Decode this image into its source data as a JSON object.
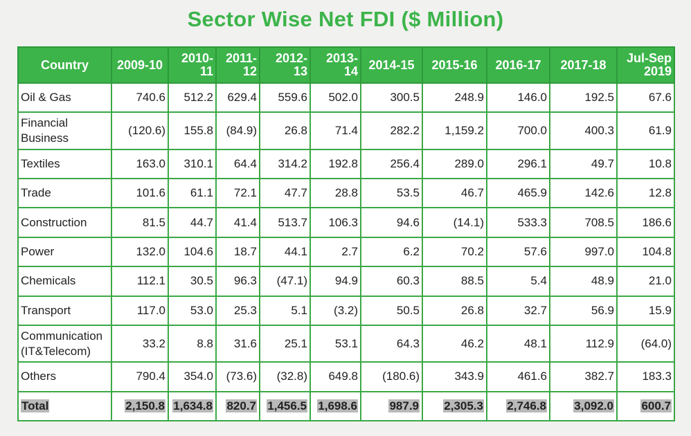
{
  "title": "Sector Wise Net FDI ($ Million)",
  "colors": {
    "title": "#3cb44a",
    "header_bg": "#3cb44a",
    "grid": "#3aa845",
    "total_highlight": "#b9b9b9"
  },
  "chart_data": {
    "type": "table",
    "title": "Sector Wise Net FDI ($ Million)",
    "columns": [
      "Country",
      "2009-10",
      "2010-11",
      "2011-12",
      "2012-13",
      "2013-14",
      "2014-15",
      "2015-16",
      "2016-17",
      "2017-18",
      "Jul-Sep 2019"
    ],
    "header_lines": [
      [
        "Country"
      ],
      [
        "2009-10"
      ],
      [
        "2010-",
        "11"
      ],
      [
        "2011-",
        "12"
      ],
      [
        "2012-",
        "13"
      ],
      [
        "2013-",
        "14"
      ],
      [
        "2014-15"
      ],
      [
        "2015-16"
      ],
      [
        "2016-17"
      ],
      [
        "2017-18"
      ],
      [
        "Jul-Sep",
        "2019"
      ]
    ],
    "rows": [
      {
        "label_lines": [
          "Oil & Gas"
        ],
        "values": [
          "740.6",
          "512.2",
          "629.4",
          "559.6",
          "502.0",
          "300.5",
          "248.9",
          "146.0",
          "192.5",
          "67.6"
        ]
      },
      {
        "label_lines": [
          "Financial",
          "Business"
        ],
        "values": [
          "(120.6)",
          "155.8",
          "(84.9)",
          "26.8",
          "71.4",
          "282.2",
          "1,159.2",
          "700.0",
          "400.3",
          "61.9"
        ]
      },
      {
        "label_lines": [
          "Textiles"
        ],
        "values": [
          "163.0",
          "310.1",
          "64.4",
          "314.2",
          "192.8",
          "256.4",
          "289.0",
          "296.1",
          "49.7",
          "10.8"
        ]
      },
      {
        "label_lines": [
          "Trade"
        ],
        "values": [
          "101.6",
          "61.1",
          "72.1",
          "47.7",
          "28.8",
          "53.5",
          "46.7",
          "465.9",
          "142.6",
          "12.8"
        ]
      },
      {
        "label_lines": [
          "Construction"
        ],
        "values": [
          "81.5",
          "44.7",
          "41.4",
          "513.7",
          "106.3",
          "94.6",
          "(14.1)",
          "533.3",
          "708.5",
          "186.6"
        ]
      },
      {
        "label_lines": [
          "Power"
        ],
        "values": [
          "132.0",
          "104.6",
          "18.7",
          "44.1",
          "2.7",
          "6.2",
          "70.2",
          "57.6",
          "997.0",
          "104.8"
        ]
      },
      {
        "label_lines": [
          "Chemicals"
        ],
        "values": [
          "112.1",
          "30.5",
          "96.3",
          "(47.1)",
          "94.9",
          "60.3",
          "88.5",
          "5.4",
          "48.9",
          "21.0"
        ]
      },
      {
        "label_lines": [
          "Transport"
        ],
        "values": [
          "117.0",
          "53.0",
          "25.3",
          "5.1",
          "(3.2)",
          "50.5",
          "26.8",
          "32.7",
          "56.9",
          "15.9"
        ]
      },
      {
        "label_lines": [
          "Communication",
          "(IT&Telecom)"
        ],
        "values": [
          "33.2",
          "8.8",
          "31.6",
          "25.1",
          "53.1",
          "64.3",
          "46.2",
          "48.1",
          "112.9",
          "(64.0)"
        ]
      },
      {
        "label_lines": [
          "Others"
        ],
        "values": [
          "790.4",
          "354.0",
          "(73.6)",
          "(32.8)",
          "649.8",
          "(180.6)",
          "343.9",
          "461.6",
          "382.7",
          "183.3"
        ]
      }
    ],
    "total": {
      "label": "Total",
      "values": [
        "2,150.8",
        "1,634.8",
        "820.7",
        "1,456.5",
        "1,698.6",
        "987.9",
        "2,305.3",
        "2,746.8",
        "3,092.0",
        "600.7"
      ]
    }
  }
}
